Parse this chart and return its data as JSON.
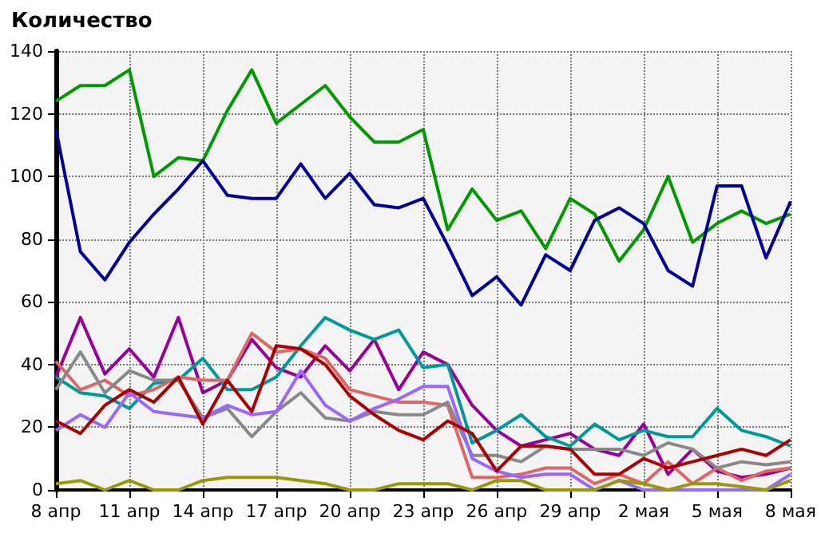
{
  "chart_data": {
    "type": "line",
    "title": "Количество",
    "categories": [
      "8 апр",
      null,
      null,
      "11 апр",
      null,
      null,
      "14 апр",
      null,
      null,
      "17 апр",
      null,
      null,
      "20 апр",
      null,
      null,
      "23 апр",
      null,
      null,
      "26 апр",
      null,
      null,
      "29 апр",
      null,
      null,
      "2 мая",
      null,
      null,
      "5 мая",
      null,
      null,
      "8 мая"
    ],
    "series": [
      {
        "color": "#009900",
        "values": [
          124,
          129,
          129,
          134,
          100,
          106,
          105,
          121,
          134,
          117,
          123,
          129,
          119,
          111,
          111,
          115,
          83,
          96,
          86,
          89,
          77,
          93,
          88,
          73,
          83,
          100,
          79,
          85,
          89,
          85,
          88
        ]
      },
      {
        "color": "#000099",
        "values": [
          115,
          76,
          67,
          79,
          88,
          96,
          105,
          94,
          93,
          93,
          104,
          93,
          101,
          91,
          90,
          93,
          78,
          62,
          68,
          59,
          75,
          70,
          86,
          90,
          85,
          70,
          65,
          97,
          97,
          74,
          92
        ]
      },
      {
        "color": "#990099",
        "values": [
          36,
          55,
          37,
          45,
          36,
          55,
          31,
          35,
          48,
          39,
          36,
          46,
          38,
          48,
          32,
          44,
          40,
          27,
          19,
          14,
          16,
          18,
          13,
          11,
          21,
          5,
          13,
          6,
          4,
          5,
          7
        ]
      },
      {
        "color": "#009999",
        "values": [
          36,
          31,
          30,
          26,
          34,
          35,
          42,
          32,
          32,
          36,
          46,
          55,
          51,
          48,
          51,
          39,
          40,
          15,
          19,
          24,
          17,
          14,
          21,
          16,
          19,
          17,
          17,
          26,
          19,
          17,
          14
        ]
      },
      {
        "color": "#e06666",
        "values": [
          41,
          32,
          35,
          30,
          32,
          36,
          35,
          35,
          50,
          44,
          45,
          42,
          32,
          30,
          28,
          28,
          27,
          4,
          4,
          5,
          7,
          7,
          2,
          5,
          2,
          9,
          2,
          7,
          3,
          6,
          7
        ]
      },
      {
        "color": "#888888",
        "values": [
          32,
          44,
          31,
          38,
          35,
          35,
          23,
          26,
          17,
          25,
          31,
          23,
          22,
          25,
          24,
          24,
          28,
          11,
          11,
          9,
          14,
          13,
          13,
          13,
          11,
          15,
          13,
          7,
          9,
          8,
          9
        ]
      },
      {
        "color": "#9966ff",
        "values": [
          19,
          24,
          20,
          31,
          25,
          24,
          23,
          27,
          24,
          25,
          38,
          27,
          22,
          26,
          29,
          33,
          33,
          10,
          6,
          4,
          5,
          5,
          0,
          3,
          0,
          0,
          0,
          0,
          0,
          0,
          5
        ]
      },
      {
        "color": "#aa0000",
        "values": [
          22,
          18,
          27,
          32,
          28,
          36,
          21,
          35,
          25,
          46,
          45,
          40,
          30,
          24,
          19,
          16,
          22,
          18,
          6,
          14,
          14,
          13,
          5,
          5,
          10,
          7,
          9,
          11,
          13,
          11,
          16
        ]
      },
      {
        "color": "#999900",
        "values": [
          2,
          3,
          0,
          3,
          0,
          0,
          3,
          4,
          4,
          4,
          3,
          2,
          0,
          0,
          2,
          2,
          2,
          0,
          3,
          3,
          0,
          0,
          0,
          3,
          2,
          0,
          2,
          2,
          1,
          0,
          3
        ]
      }
    ],
    "ylim": [
      0,
      140
    ],
    "yticks": [
      0,
      20,
      40,
      60,
      80,
      100,
      120,
      140
    ],
    "grid": true,
    "marker": "none",
    "line_style": "solid"
  }
}
